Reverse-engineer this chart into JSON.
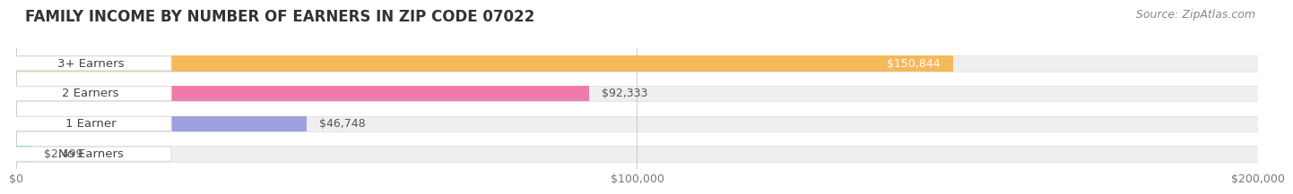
{
  "title": "FAMILY INCOME BY NUMBER OF EARNERS IN ZIP CODE 07022",
  "source": "Source: ZipAtlas.com",
  "categories": [
    "No Earners",
    "1 Earner",
    "2 Earners",
    "3+ Earners"
  ],
  "values": [
    2499,
    46748,
    92333,
    150844
  ],
  "bar_colors": [
    "#5ecece",
    "#a0a0e0",
    "#f07aaa",
    "#f5b85a"
  ],
  "bar_labels": [
    "$2,499",
    "$46,748",
    "$92,333",
    "$150,844"
  ],
  "label_inside": [
    false,
    false,
    false,
    true
  ],
  "xlim": [
    0,
    200000
  ],
  "xticks": [
    0,
    100000,
    200000
  ],
  "xtick_labels": [
    "$0",
    "$100,000",
    "$200,000"
  ],
  "background_color": "#ffffff",
  "bar_bg_color": "#efefef",
  "bar_border_color": "#dddddd",
  "title_fontsize": 12,
  "source_fontsize": 9,
  "label_fontsize": 9,
  "category_fontsize": 9.5
}
